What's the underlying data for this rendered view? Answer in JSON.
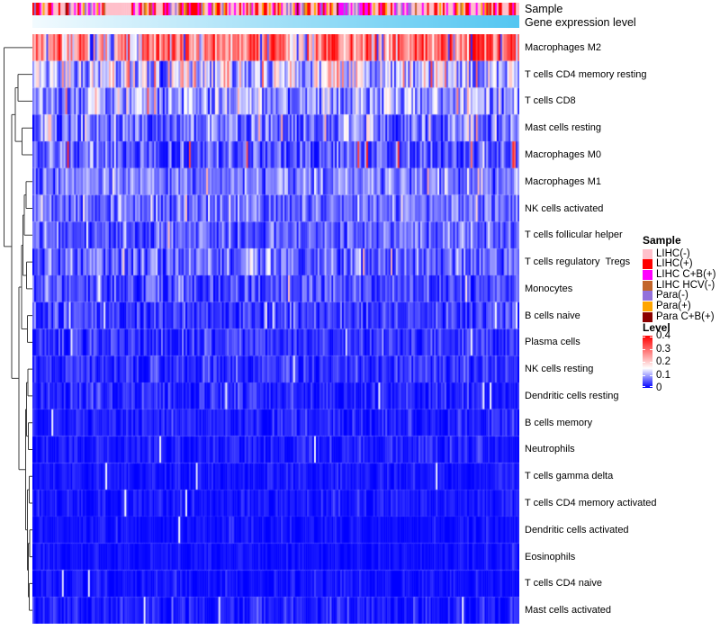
{
  "chart_data": {
    "type": "heatmap",
    "seed": 42,
    "n_cols": 280,
    "rows": [
      "Macrophages M2",
      "T cells CD4 memory resting",
      "T cells CD8",
      "Mast cells resting",
      "Macrophages M0",
      "Macrophages M1",
      "NK cells activated",
      "T cells follicular helper",
      "T cells regulatory  Tregs",
      "Monocytes",
      "B cells naive",
      "Plasma cells",
      "NK cells resting",
      "Dendritic cells resting",
      "B cells memory",
      "Neutrophils",
      "T cells gamma delta",
      "T cells CD4 memory activated",
      "Dendritic cells activated",
      "Eosinophils",
      "T cells CD4 naive",
      "Mast cells activated"
    ],
    "row_profiles": [
      {
        "mean": 0.27,
        "sd": 0.09,
        "trend": 0.1,
        "hi_p": 0.02,
        "hi_v": 0.38,
        "lo_p": 0.05,
        "lo_v": 0.02
      },
      {
        "mean": 0.13,
        "sd": 0.06,
        "trend": 0.02,
        "hi_p": 0.05,
        "hi_v": 0.3,
        "lo_p": 0.12,
        "lo_v": 0.02
      },
      {
        "mean": 0.1,
        "sd": 0.045,
        "hi_p": 0.03,
        "hi_v": 0.3,
        "lo_p": 0.08,
        "lo_v": 0.02
      },
      {
        "mean": 0.07,
        "sd": 0.04,
        "hi_p": 0.04,
        "hi_v": 0.22,
        "lo_p": 0.1,
        "lo_v": 0.01
      },
      {
        "mean": 0.055,
        "sd": 0.035,
        "hi_p": 0.025,
        "hi_v": 0.33,
        "lo_p": 0.15,
        "lo_v": 0.005
      },
      {
        "mean": 0.075,
        "sd": 0.03,
        "hi_p": 0.01,
        "hi_v": 0.2,
        "lo_p": 0.05,
        "lo_v": 0.01
      },
      {
        "mean": 0.07,
        "sd": 0.03,
        "hi_p": 0.008,
        "hi_v": 0.2,
        "lo_p": 0.06,
        "lo_v": 0.01
      },
      {
        "mean": 0.06,
        "sd": 0.03,
        "hi_p": 0.005,
        "hi_v": 0.18,
        "lo_p": 0.08,
        "lo_v": 0.005
      },
      {
        "mean": 0.06,
        "sd": 0.035,
        "hi_p": 0.01,
        "hi_v": 0.2,
        "lo_p": 0.08,
        "lo_v": 0.005
      },
      {
        "mean": 0.045,
        "sd": 0.03,
        "hi_p": 0.005,
        "hi_v": 0.18,
        "lo_p": 0.1,
        "lo_v": 0.003
      },
      {
        "mean": 0.032,
        "sd": 0.028,
        "hi_p": 0.004,
        "hi_v": 0.15,
        "wh_p": 0.02
      },
      {
        "mean": 0.028,
        "sd": 0.025,
        "hi_p": 0.003,
        "hi_v": 0.15,
        "wh_p": 0.01
      },
      {
        "mean": 0.024,
        "sd": 0.022,
        "wh_p": 0.01
      },
      {
        "mean": 0.02,
        "sd": 0.02,
        "wh_p": 0.008
      },
      {
        "mean": 0.017,
        "sd": 0.018,
        "wh_p": 0.008
      },
      {
        "mean": 0.014,
        "sd": 0.016,
        "wh_p": 0.006
      },
      {
        "mean": 0.01,
        "sd": 0.014,
        "wh_p": 0.005
      },
      {
        "mean": 0.01,
        "sd": 0.014,
        "wh_p": 0.006
      },
      {
        "mean": 0.006,
        "sd": 0.01,
        "wh_p": 0.004
      },
      {
        "mean": 0.005,
        "sd": 0.01,
        "wh_p": 0.004
      },
      {
        "mean": 0.006,
        "sd": 0.011,
        "wh_p": 0.006
      },
      {
        "mean": 0.012,
        "sd": 0.02,
        "wh_p": 0.01
      }
    ],
    "color_scale": {
      "min": 0,
      "mid": 0.15,
      "max": 0.4,
      "low": "#0000FF",
      "middle": "#FFFFFF",
      "high": "#FF0000"
    },
    "dendrogram": [
      4.5,
      1,
      [
        13,
        [
          17,
          [
            20,
            2,
            3
          ],
          [
            24.5,
            4,
            5
          ]
        ],
        [
          21,
          [
            24,
            [
              25.5,
              [
                27,
                [
                  29,
                  6,
                  7
                ],
                8
              ],
              [
                29.5,
                9,
                10
              ]
            ],
            [
              30.5,
              11,
              12
            ]
          ],
          [
            28.5,
            [
              29.5,
              [
                31,
                13,
                14
              ],
              [
                31.5,
                15,
                16
              ]
            ],
            [
              30.5,
              [
                32.5,
                17,
                18
              ],
              [
                31.5,
                [
                  33,
                  19,
                  20
                ],
                [
                  32.5,
                  21,
                  22
                ]
              ]
            ]
          ]
        ]
      ]
    ],
    "annotations": {
      "sample": {
        "label": "Sample",
        "palette": [
          {
            "name": "LIHC(-)",
            "color": "#FFC0CB",
            "weight": 0.42
          },
          {
            "name": "LIHC(+)",
            "color": "#FF0000",
            "weight": 0.21
          },
          {
            "name": "LIHC C+B(+)",
            "color": "#FF00FF",
            "weight": 0.18
          },
          {
            "name": "Para(-)",
            "color": "#9370DB",
            "weight": 0.07
          },
          {
            "name": "Para(+)",
            "color": "#FFA500",
            "weight": 0.06
          },
          {
            "name": "LIHC HCV(-)",
            "color": "#C2652A",
            "weight": 0.04
          },
          {
            "name": "Para C+B(+)",
            "color": "#8B0000",
            "weight": 0.02
          }
        ]
      },
      "gene": {
        "label": "Gene expression level",
        "gradient_from": "#F2FAFE",
        "gradient_to": "#53C6F1"
      }
    },
    "legend": {
      "sample_title": "Sample",
      "sample_items": [
        {
          "label": "LIHC(-)",
          "color": "#FFC0CB"
        },
        {
          "label": "LIHC(+)",
          "color": "#FF0000"
        },
        {
          "label": "LIHC C+B(+)",
          "color": "#FF00FF"
        },
        {
          "label": "LIHC HCV(-)",
          "color": "#C2652A"
        },
        {
          "label": "Para(-)",
          "color": "#9370DB"
        },
        {
          "label": "Para(+)",
          "color": "#FFA500"
        },
        {
          "label": "Para C+B(+)",
          "color": "#8B0000"
        }
      ],
      "level_title": "Level",
      "level_ticks": [
        "0.4",
        "0.3",
        "0.2",
        "0.1",
        "0"
      ]
    }
  }
}
